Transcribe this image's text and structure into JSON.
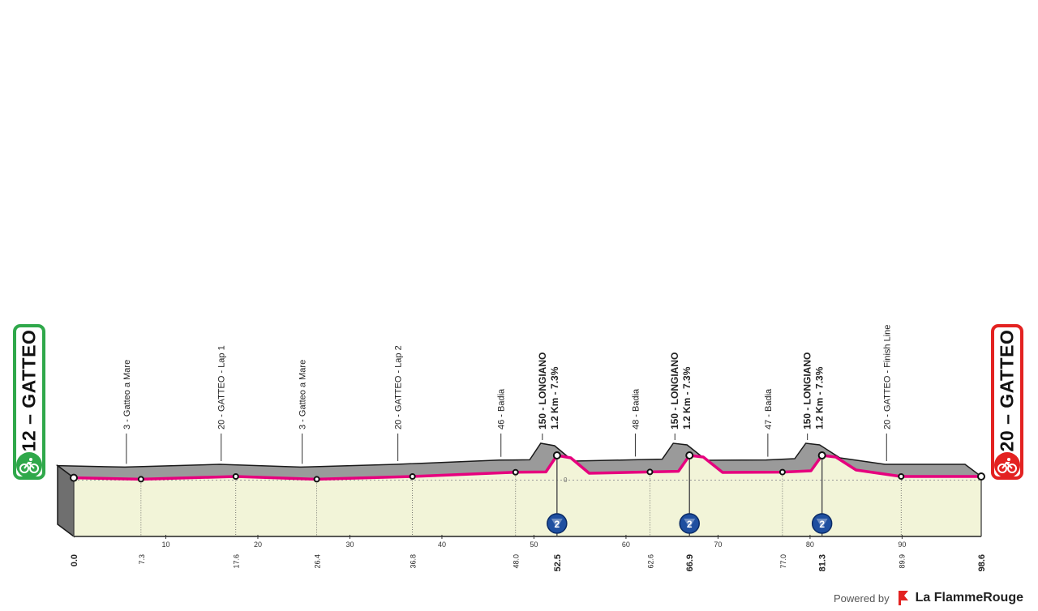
{
  "start": {
    "label": "12 – GATTEO",
    "color": "#2fa84a",
    "icon": "bicycle-icon"
  },
  "finish": {
    "label": "20 – GATTEO",
    "color": "#e32221",
    "icon": "bicycle-icon"
  },
  "footer": {
    "powered_label": "Powered by",
    "brand_label": "La FlammeRouge",
    "brand_icon": "flag-icon",
    "brand_color": "#e32221"
  },
  "chart_data": {
    "type": "area",
    "xlim": [
      0,
      98.6
    ],
    "x_ticks": [
      10,
      20,
      30,
      40,
      50,
      60,
      70,
      80,
      90
    ],
    "y_zero_label": "0",
    "profile_color": "#f2f4d8",
    "road_color": "#e6007e",
    "profile": [
      {
        "km": 0.0,
        "alt": 12
      },
      {
        "km": 7.3,
        "alt": 3
      },
      {
        "km": 17.6,
        "alt": 20
      },
      {
        "km": 26.4,
        "alt": 3
      },
      {
        "km": 36.8,
        "alt": 20
      },
      {
        "km": 48.0,
        "alt": 46
      },
      {
        "km": 51.3,
        "alt": 48
      },
      {
        "km": 52.5,
        "alt": 150
      },
      {
        "km": 54.0,
        "alt": 135
      },
      {
        "km": 56.0,
        "alt": 40
      },
      {
        "km": 62.6,
        "alt": 48
      },
      {
        "km": 65.7,
        "alt": 52
      },
      {
        "km": 66.9,
        "alt": 150
      },
      {
        "km": 68.4,
        "alt": 140
      },
      {
        "km": 70.5,
        "alt": 45
      },
      {
        "km": 77.0,
        "alt": 47
      },
      {
        "km": 80.1,
        "alt": 55
      },
      {
        "km": 81.3,
        "alt": 150
      },
      {
        "km": 82.8,
        "alt": 140
      },
      {
        "km": 85.0,
        "alt": 60
      },
      {
        "km": 89.9,
        "alt": 20
      },
      {
        "km": 98.6,
        "alt": 20
      }
    ],
    "points": [
      {
        "km": "0.0",
        "x": 0.0,
        "label": "",
        "bold": true
      },
      {
        "km": "7.3",
        "x": 7.3,
        "label": "3 - Gatteo a Mare",
        "bold": false
      },
      {
        "km": "17.6",
        "x": 17.6,
        "label": "20 - GATTEO - Lap 1",
        "bold": false
      },
      {
        "km": "26.4",
        "x": 26.4,
        "label": "3 - Gatteo a Mare",
        "bold": false
      },
      {
        "km": "36.8",
        "x": 36.8,
        "label": "20 - GATTEO - Lap 2",
        "bold": false
      },
      {
        "km": "48.0",
        "x": 48.0,
        "label": "46 - Badia",
        "bold": false
      },
      {
        "km": "52.5",
        "x": 52.5,
        "label": "150 - LONGIANO",
        "label2": "1.2 Km - 7.3%",
        "bold": true,
        "kom": "2"
      },
      {
        "km": "62.6",
        "x": 62.6,
        "label": "48 - Badia",
        "bold": false
      },
      {
        "km": "66.9",
        "x": 66.9,
        "label": "150 - LONGIANO",
        "label2": "1.2 Km - 7.3%",
        "bold": true,
        "kom": "2"
      },
      {
        "km": "77.0",
        "x": 77.0,
        "label": "47 - Badia",
        "bold": false
      },
      {
        "km": "81.3",
        "x": 81.3,
        "label": "150 - LONGIANO",
        "label2": "1.2 Km - 7.3%",
        "bold": true,
        "kom": "2"
      },
      {
        "km": "89.9",
        "x": 89.9,
        "label": "20 - GATTEO - Finish Line",
        "bold": false
      },
      {
        "km": "98.6",
        "x": 98.6,
        "label": "",
        "bold": true
      }
    ]
  }
}
